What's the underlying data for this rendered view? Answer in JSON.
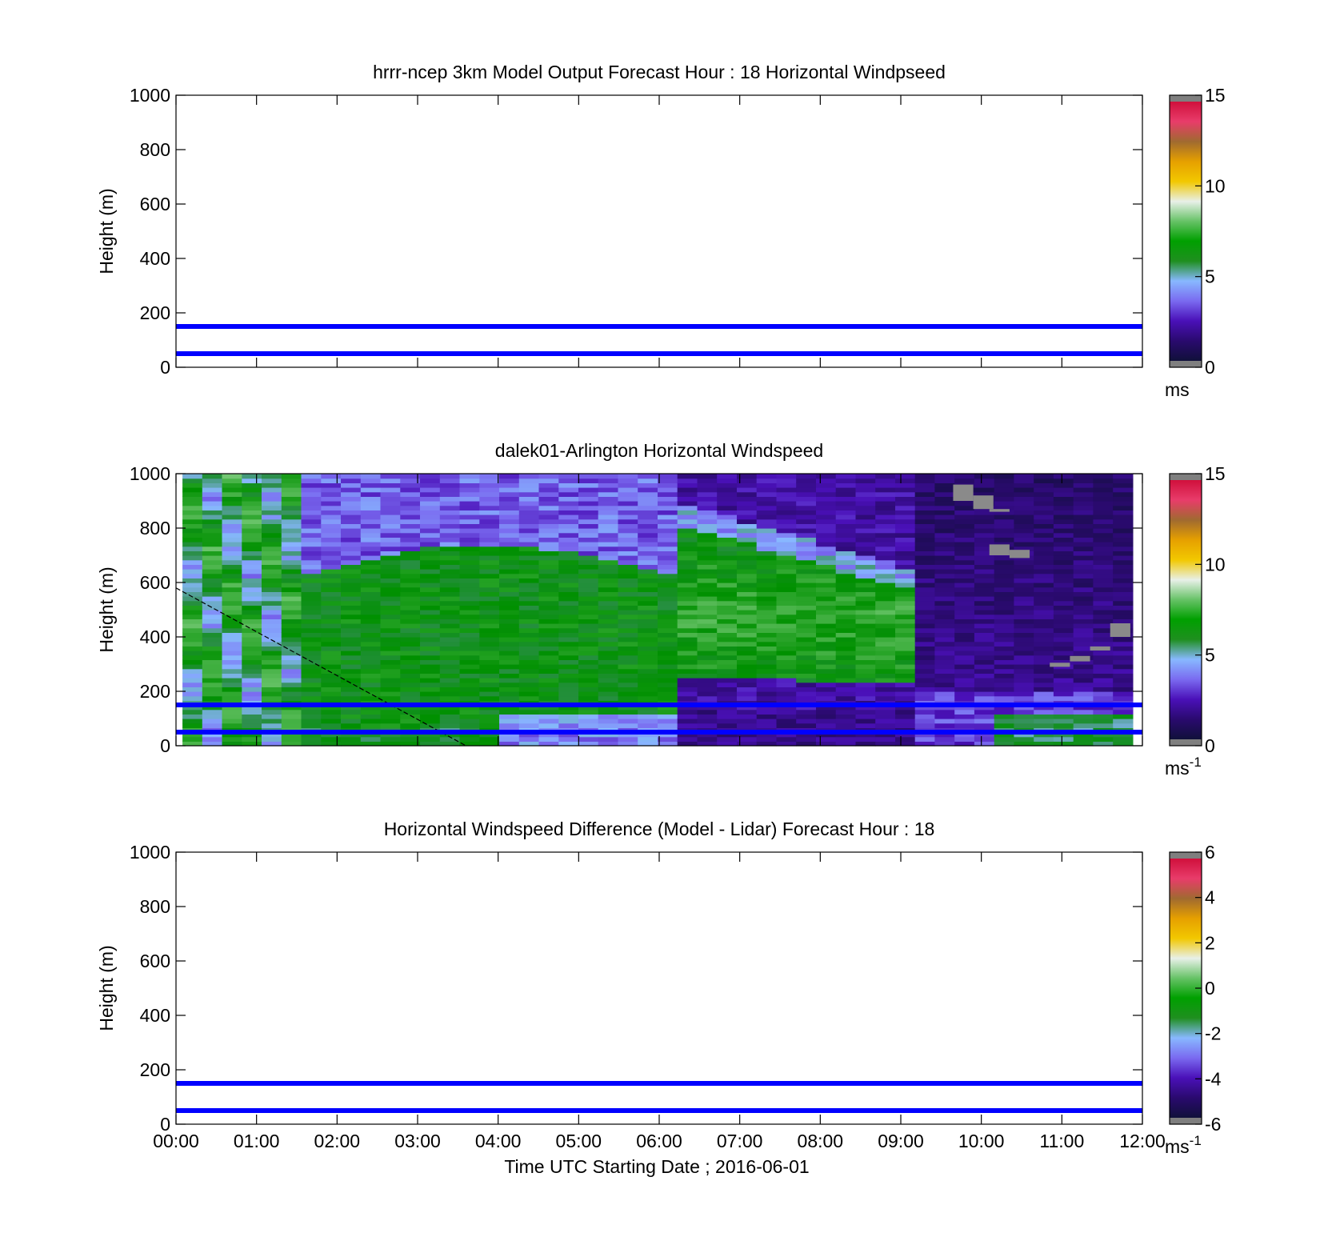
{
  "figure": {
    "xlabel": "Time UTC  Starting Date ; 2016-06-01",
    "x_ticks": [
      "00:00",
      "01:00",
      "02:00",
      "03:00",
      "04:00",
      "05:00",
      "06:00",
      "07:00",
      "08:00",
      "09:00",
      "10:00",
      "11:00",
      "12:00"
    ]
  },
  "chart_data": [
    {
      "type": "heatmap",
      "title": "hrrr-ncep 3km Model Output   Forecast Hour : 18 Horizontal Windpseed",
      "ylabel": "Height (m)",
      "ylim": [
        0,
        1000
      ],
      "y_ticks": [
        0,
        200,
        400,
        600,
        800,
        1000
      ],
      "xlim_hours": [
        0,
        12
      ],
      "grid": false,
      "field": "empty",
      "reference_lines_m": [
        50,
        150
      ],
      "reference_line_color": "#0000ff",
      "colorbar": {
        "range": [
          0,
          15
        ],
        "ticks": [
          0,
          5,
          10,
          15
        ],
        "unit_base": "ms",
        "unit_exp": ""
      }
    },
    {
      "type": "heatmap",
      "title": "dalek01-Arlington  Horizontal Windspeed",
      "ylabel": "Height (m)",
      "ylim": [
        0,
        1000
      ],
      "y_ticks": [
        0,
        200,
        400,
        600,
        800,
        1000
      ],
      "xlim_hours": [
        0,
        12
      ],
      "grid": false,
      "field": "lidar_windspeed",
      "data_range_hours": [
        0.08,
        11.88
      ],
      "reference_lines_m": [
        50,
        150
      ],
      "reference_line_color": "#0000ff",
      "annotation_line": {
        "style": "dashed",
        "color": "#000000",
        "from": [
          0,
          580
        ],
        "to": [
          3.6,
          0
        ]
      },
      "colorbar": {
        "range": [
          0,
          15
        ],
        "ticks": [
          0,
          5,
          10,
          15
        ],
        "unit_base": "ms",
        "unit_exp": "-1"
      }
    },
    {
      "type": "heatmap",
      "title": "Horizontal Windspeed Difference (Model - Lidar) Forecast Hour : 18",
      "ylabel": "Height (m)",
      "ylim": [
        0,
        1000
      ],
      "y_ticks": [
        0,
        200,
        400,
        600,
        800,
        1000
      ],
      "xlim_hours": [
        0,
        12
      ],
      "grid": false,
      "field": "empty",
      "reference_lines_m": [
        50,
        150
      ],
      "reference_line_color": "#0000ff",
      "colorbar": {
        "range": [
          -6,
          6
        ],
        "ticks": [
          -6,
          -4,
          -2,
          0,
          2,
          4,
          6
        ],
        "unit_base": "ms",
        "unit_exp": "-1"
      }
    }
  ],
  "colors": {
    "reference_line": "#0000ff",
    "colormap": [
      "#7f7f7f",
      "#10103a",
      "#2a0a6e",
      "#4a10b8",
      "#7a6af0",
      "#88b8ff",
      "#1f8f1f",
      "#00a000",
      "#66c266",
      "#e8f0e8",
      "#f2c800",
      "#e6a000",
      "#a06a30",
      "#e83c6a",
      "#d0103c",
      "#7f7f7f"
    ]
  }
}
